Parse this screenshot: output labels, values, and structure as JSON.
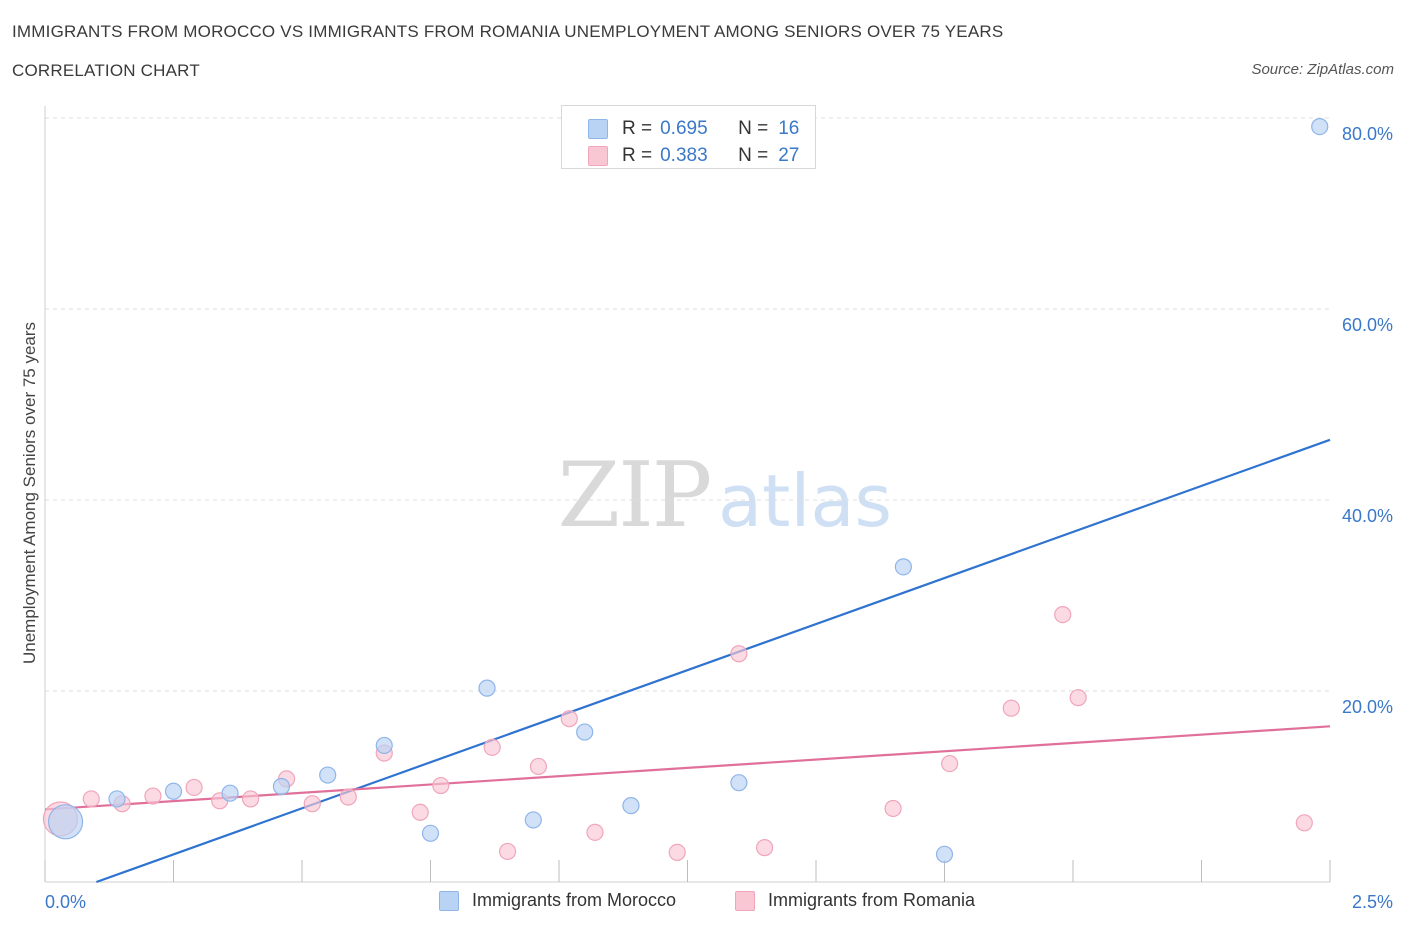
{
  "header": {
    "title": "IMMIGRANTS FROM MOROCCO VS IMMIGRANTS FROM ROMANIA UNEMPLOYMENT AMONG SENIORS OVER 75 YEARS",
    "subtitle": "CORRELATION CHART",
    "source": "Source: ZipAtlas.com"
  },
  "watermark": {
    "part1": "ZIP",
    "part2": "atlas"
  },
  "legend": {
    "r_label": "R =",
    "n_label": "N =",
    "morocco": {
      "r": "0.695",
      "n": "16"
    },
    "romania": {
      "r": "0.383",
      "n": "27"
    }
  },
  "colors": {
    "morocco_fill": "#b9d3f4",
    "morocco_stroke": "#8fb5e8",
    "morocco_line": "#2f73d0",
    "romania_fill": "#f9c6d4",
    "romania_stroke": "#f0a5bb",
    "romania_line": "#e0709a",
    "axis_text": "#3a78c9",
    "grid": "#dddddd"
  },
  "chart_data": {
    "type": "scatter",
    "title": "IMMIGRANTS FROM MOROCCO VS IMMIGRANTS FROM ROMANIA UNEMPLOYMENT AMONG SENIORS OVER 75 YEARS",
    "xlabel": "",
    "ylabel": "Unemployment Among Seniors over 75 years",
    "xlim": [
      0,
      2.5
    ],
    "ylim": [
      0,
      80
    ],
    "x_tick_labels": [
      "0.0%",
      "2.5%"
    ],
    "y_ticks": [
      20,
      40,
      60,
      80
    ],
    "y_tick_labels": [
      "20.0%",
      "40.0%",
      "60.0%",
      "80.0%"
    ],
    "legend_position": "top-center",
    "series": [
      {
        "name": "Immigrants from Morocco",
        "color": "#b9d3f4",
        "r": 0.695,
        "n": 16,
        "trend": {
          "x": [
            0.1,
            2.5
          ],
          "y": [
            0.0,
            46.3
          ]
        },
        "points": [
          {
            "x": 0.04,
            "y": 6.3,
            "size": "large"
          },
          {
            "x": 0.14,
            "y": 8.7
          },
          {
            "x": 0.25,
            "y": 9.5
          },
          {
            "x": 0.36,
            "y": 9.3
          },
          {
            "x": 0.46,
            "y": 10.0
          },
          {
            "x": 0.55,
            "y": 11.2
          },
          {
            "x": 0.66,
            "y": 14.3
          },
          {
            "x": 0.75,
            "y": 5.1
          },
          {
            "x": 0.86,
            "y": 20.3
          },
          {
            "x": 0.95,
            "y": 6.5
          },
          {
            "x": 1.05,
            "y": 15.7
          },
          {
            "x": 1.14,
            "y": 8.0
          },
          {
            "x": 1.35,
            "y": 10.4
          },
          {
            "x": 1.67,
            "y": 33.0
          },
          {
            "x": 1.75,
            "y": 2.9
          },
          {
            "x": 2.48,
            "y": 79.1
          }
        ]
      },
      {
        "name": "Immigrants from Romania",
        "color": "#f9c6d4",
        "r": 0.383,
        "n": 27,
        "trend": {
          "x": [
            0.0,
            2.5
          ],
          "y": [
            7.6,
            16.3
          ]
        },
        "points": [
          {
            "x": 0.03,
            "y": 6.6,
            "size": "large"
          },
          {
            "x": 0.09,
            "y": 8.7
          },
          {
            "x": 0.15,
            "y": 8.2
          },
          {
            "x": 0.21,
            "y": 9.0
          },
          {
            "x": 0.29,
            "y": 9.9
          },
          {
            "x": 0.34,
            "y": 8.5
          },
          {
            "x": 0.4,
            "y": 8.7
          },
          {
            "x": 0.47,
            "y": 10.8
          },
          {
            "x": 0.52,
            "y": 8.2
          },
          {
            "x": 0.59,
            "y": 8.9
          },
          {
            "x": 0.66,
            "y": 13.5
          },
          {
            "x": 0.73,
            "y": 7.3
          },
          {
            "x": 0.77,
            "y": 10.1
          },
          {
            "x": 0.87,
            "y": 14.1
          },
          {
            "x": 0.9,
            "y": 3.2
          },
          {
            "x": 0.96,
            "y": 12.1
          },
          {
            "x": 1.02,
            "y": 17.1
          },
          {
            "x": 1.07,
            "y": 5.2
          },
          {
            "x": 1.23,
            "y": 3.1
          },
          {
            "x": 1.35,
            "y": 23.9
          },
          {
            "x": 1.4,
            "y": 3.6
          },
          {
            "x": 1.65,
            "y": 7.7
          },
          {
            "x": 1.76,
            "y": 12.4
          },
          {
            "x": 1.88,
            "y": 18.2
          },
          {
            "x": 1.98,
            "y": 28.0
          },
          {
            "x": 2.01,
            "y": 19.3
          },
          {
            "x": 2.45,
            "y": 6.2
          }
        ]
      }
    ]
  }
}
